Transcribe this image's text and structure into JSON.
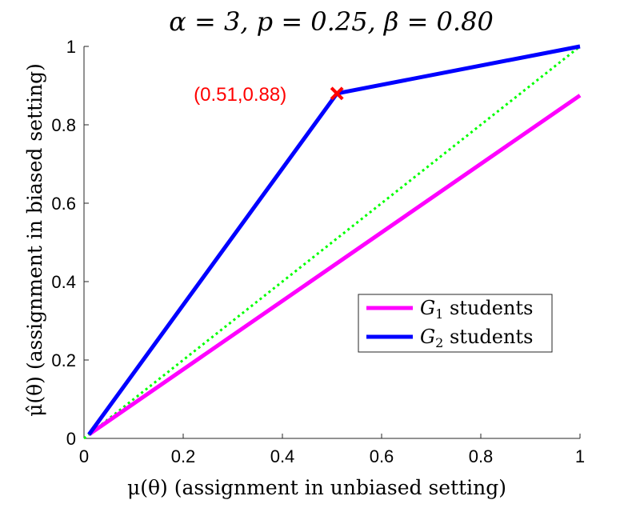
{
  "chart_data": {
    "type": "line",
    "title": "α = 3, p = 0.25, β = 0.80",
    "xlabel": "μ(θ) (assignment in unbiased setting)",
    "ylabel": "μ̂(θ) (assignment in biased setting)",
    "xlim": [
      0,
      1
    ],
    "ylim": [
      0,
      1
    ],
    "xticks": [
      0,
      0.2,
      0.4,
      0.6,
      0.8,
      1
    ],
    "yticks": [
      0,
      0.2,
      0.4,
      0.6,
      0.8,
      1
    ],
    "xtick_labels": [
      "0",
      "0.2",
      "0.4",
      "0.6",
      "0.8",
      "1"
    ],
    "ytick_labels": [
      "0",
      "0.2",
      "0.4",
      "0.6",
      "0.8",
      "1"
    ],
    "grid": false,
    "legend_position": "bottom-right",
    "series": [
      {
        "name": "G1 students",
        "legend_main": "G",
        "legend_sub": "1",
        "legend_rest": " students",
        "color": "#ff00ff",
        "x": [
          0.01,
          1.0
        ],
        "y": [
          0.01,
          0.875
        ]
      },
      {
        "name": "G2 students",
        "legend_main": "G",
        "legend_sub": "2",
        "legend_rest": " students",
        "color": "#0000ff",
        "x": [
          0.01,
          0.51,
          1.0
        ],
        "y": [
          0.01,
          0.88,
          1.0
        ]
      }
    ],
    "reference_line": {
      "color": "#00ff00",
      "style": "dotted",
      "x": [
        0,
        1
      ],
      "y": [
        0,
        1
      ]
    },
    "marker": {
      "x": 0.51,
      "y": 0.88,
      "label": "(0.51,0.88)",
      "color": "#ff0000",
      "symbol": "x"
    }
  }
}
